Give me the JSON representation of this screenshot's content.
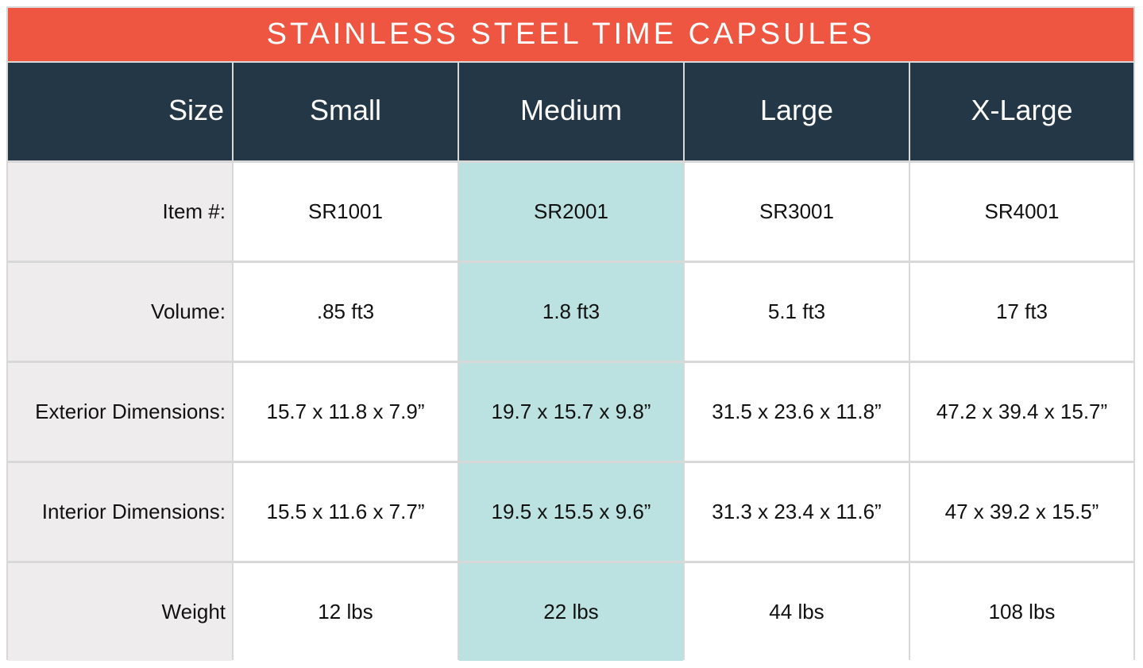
{
  "title": "STAINLESS STEEL TIME CAPSULES",
  "colors": {
    "title_bg": "#ef5641",
    "header_bg": "#243746",
    "highlight_bg": "#bbe2e0",
    "label_bg": "#eeecec"
  },
  "header": {
    "size_label": "Size",
    "columns": [
      "Small",
      "Medium",
      "Large",
      "X-Large"
    ]
  },
  "rows": [
    {
      "label": "Item #:",
      "values": [
        "SR1001",
        "SR2001",
        "SR3001",
        "SR4001"
      ]
    },
    {
      "label": "Volume:",
      "values": [
        ".85 ft3",
        "1.8 ft3",
        "5.1 ft3",
        "17 ft3"
      ]
    },
    {
      "label": "Exterior Dimensions:",
      "values": [
        "15.7 x 11.8 x 7.9”",
        "19.7 x 15.7 x 9.8”",
        "31.5 x 23.6 x 11.8”",
        "47.2 x 39.4 x 15.7”"
      ]
    },
    {
      "label": "Interior Dimensions:",
      "values": [
        "15.5 x 11.6 x 7.7”",
        "19.5 x 15.5 x 9.6”",
        "31.3 x 23.4 x 11.6”",
        "47 x 39.2 x 15.5”"
      ]
    },
    {
      "label": "Weight",
      "values": [
        "12 lbs",
        "22 lbs",
        "44 lbs",
        "108 lbs"
      ]
    }
  ],
  "highlighted_column": "Medium"
}
